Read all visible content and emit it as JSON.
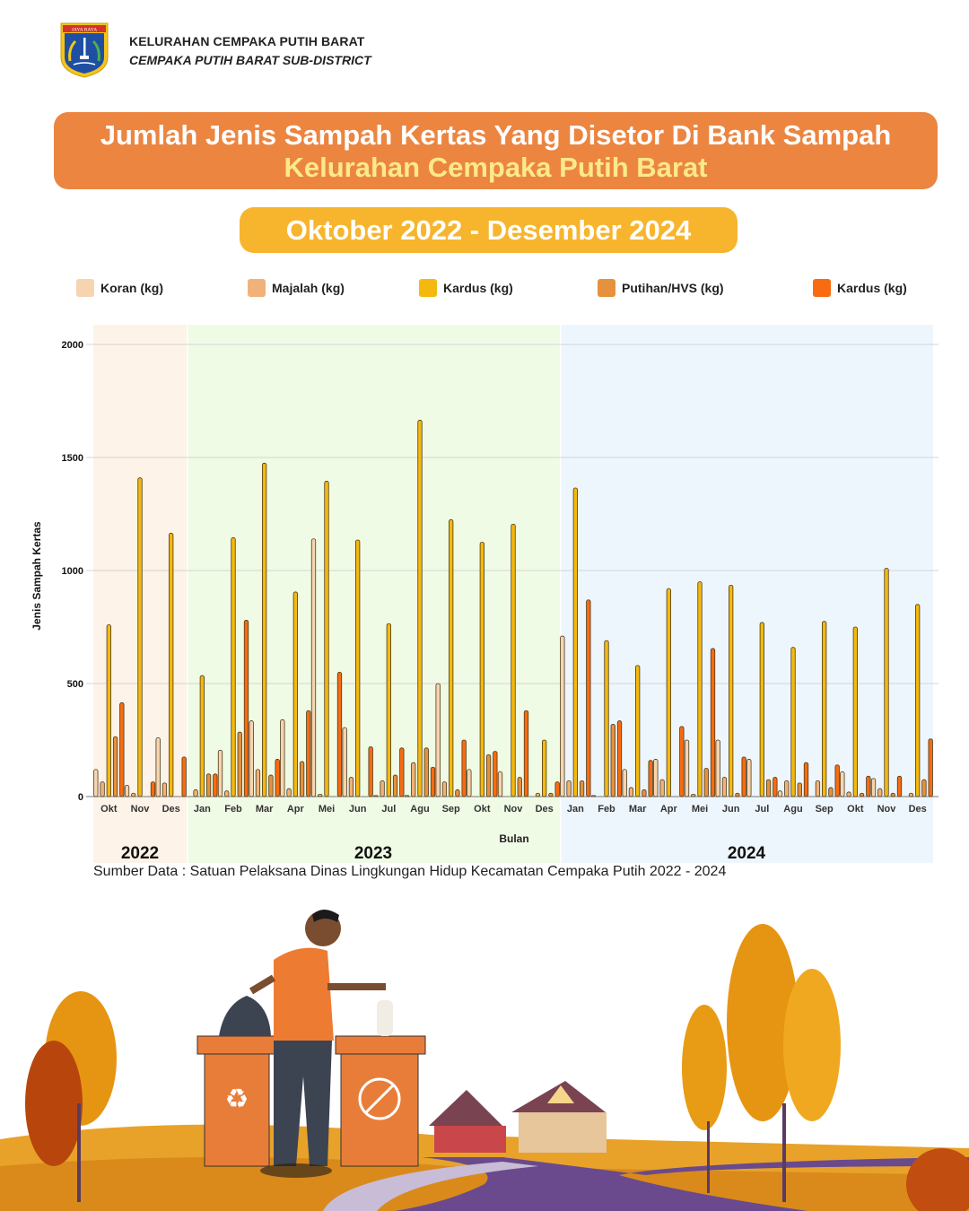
{
  "header": {
    "logo_label": "JAYA RAYA",
    "line1": "KELURAHAN CEMPAKA PUTIH BARAT",
    "line2": "CEMPAKA PUTIH BARAT SUB-DISTRICT"
  },
  "title": {
    "line1": "Jumlah Jenis Sampah Kertas Yang Disetor Di Bank Sampah",
    "line2": "Kelurahan Cempaka Putih Barat"
  },
  "period": "Oktober 2022 - Desember 2024",
  "colors": {
    "title_bg": "#ec8540",
    "title_accent": "#fce98a",
    "period_bg": "#f7b52e",
    "band_2022": "#fdf3e8",
    "band_2023": "#f0fbe6",
    "band_2024": "#eef6fd"
  },
  "legend": [
    {
      "label": "Koran (kg)",
      "color": "#f7d4b0"
    },
    {
      "label": "Majalah (kg)",
      "color": "#f0b27a"
    },
    {
      "label": "Kardus (kg)",
      "color": "#f4b90f"
    },
    {
      "label": "Putihan/HVS (kg)",
      "color": "#e5913e"
    },
    {
      "label": "Kardus (kg)",
      "color": "#f86b10"
    }
  ],
  "source": "Sumber Data : Satuan Pelaksana Dinas Lingkungan Hidup Kecamatan Cempaka Putih 2022 - 2024",
  "chart_data": {
    "type": "bar",
    "title": "Jumlah Jenis Sampah Kertas Yang Disetor Di Bank Sampah Kelurahan Cempaka Putih Barat",
    "subtitle": "Oktober 2022 - Desember 2024",
    "xlabel": "Bulan",
    "ylabel": "Jenis Sampah Kertas",
    "ylim": [
      0,
      2000
    ],
    "yticks": [
      0,
      500,
      1000,
      1500,
      2000
    ],
    "grid": true,
    "legend_position": "top",
    "year_groups": [
      {
        "year": "2022",
        "start": 0,
        "count": 3
      },
      {
        "year": "2023",
        "start": 3,
        "count": 12
      },
      {
        "year": "2024",
        "start": 15,
        "count": 12
      }
    ],
    "categories": [
      "Okt",
      "Nov",
      "Des",
      "Jan",
      "Feb",
      "Mar",
      "Apr",
      "Mei",
      "Jun",
      "Jul",
      "Agu",
      "Sep",
      "Okt",
      "Nov",
      "Des",
      "Jan",
      "Feb",
      "Mar",
      "Apr",
      "Mei",
      "Jun",
      "Jul",
      "Agu",
      "Sep",
      "Okt",
      "Nov",
      "Des"
    ],
    "series": [
      {
        "name": "Koran (kg)",
        "color": "#f7d4b0",
        "values": [
          120,
          50,
          260,
          0,
          205,
          335,
          340,
          1140,
          305,
          5,
          5,
          500,
          120,
          110,
          0,
          710,
          5,
          120,
          165,
          250,
          250,
          165,
          25,
          0,
          110,
          80,
          0
        ]
      },
      {
        "name": "Majalah (kg)",
        "color": "#f0b27a",
        "values": [
          65,
          15,
          60,
          30,
          25,
          120,
          35,
          10,
          85,
          70,
          150,
          65,
          0,
          0,
          15,
          70,
          0,
          40,
          75,
          10,
          85,
          0,
          70,
          70,
          20,
          35,
          15
        ]
      },
      {
        "name": "Kardus (kg)",
        "color": "#f4b90f",
        "values": [
          760,
          1410,
          1165,
          535,
          1145,
          1475,
          905,
          1395,
          1135,
          765,
          1665,
          1225,
          1125,
          1205,
          250,
          1365,
          690,
          580,
          920,
          950,
          935,
          770,
          660,
          775,
          750,
          1010,
          850
        ]
      },
      {
        "name": "Putihan/HVS (kg)",
        "color": "#e5913e",
        "values": [
          265,
          0,
          0,
          100,
          285,
          95,
          155,
          0,
          0,
          95,
          215,
          30,
          185,
          85,
          15,
          70,
          320,
          30,
          0,
          125,
          15,
          75,
          60,
          40,
          15,
          15,
          75
        ]
      },
      {
        "name": "Kardus (kg)",
        "color": "#f86b10",
        "values": [
          415,
          65,
          175,
          100,
          780,
          165,
          380,
          550,
          220,
          215,
          130,
          250,
          200,
          380,
          65,
          870,
          335,
          160,
          310,
          655,
          175,
          85,
          150,
          140,
          90,
          90,
          255
        ]
      }
    ]
  }
}
